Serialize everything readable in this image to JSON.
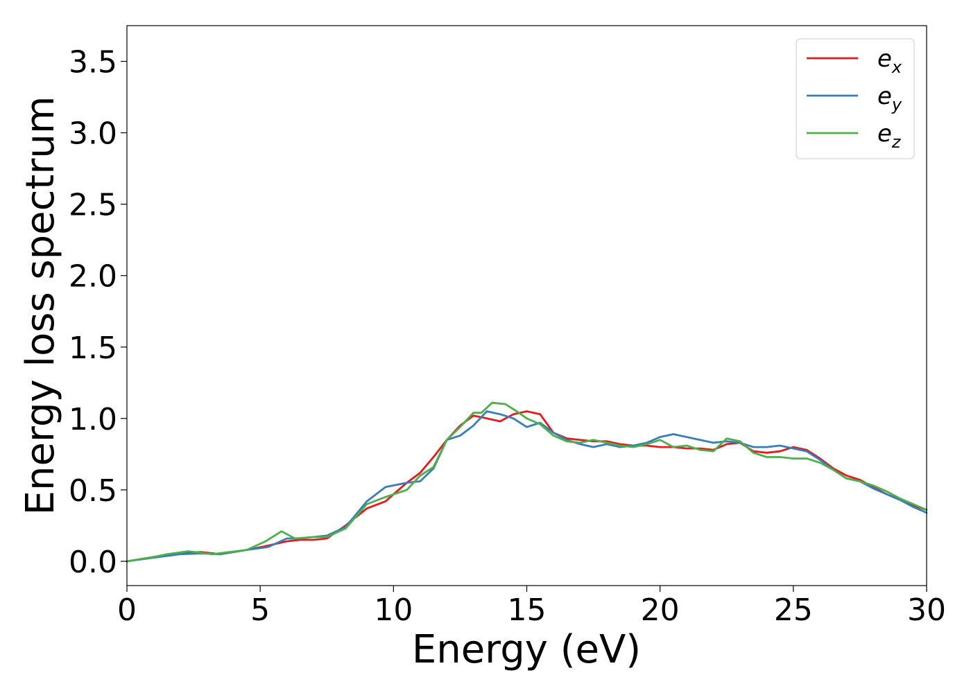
{
  "chart_data": {
    "type": "line",
    "title": "",
    "xlabel": "Energy (eV)",
    "ylabel": "Energy loss spectrum",
    "xlim": [
      0,
      30
    ],
    "ylim": [
      -0.17,
      3.75
    ],
    "xticks": [
      0,
      5,
      10,
      15,
      20,
      25,
      30
    ],
    "xtick_labels": [
      "0",
      "5",
      "10",
      "15",
      "20",
      "25",
      "30"
    ],
    "yticks": [
      0.0,
      0.5,
      1.0,
      1.5,
      2.0,
      2.5,
      3.0,
      3.5
    ],
    "ytick_labels": [
      "0.0",
      "0.5",
      "1.0",
      "1.5",
      "2.0",
      "2.5",
      "3.0",
      "3.5"
    ],
    "grid": false,
    "legend_position": "top-right",
    "series": [
      {
        "name_base": "e",
        "name_sub": "x",
        "color": "#e41a1c",
        "x": [
          0,
          1,
          2,
          2.8,
          3.5,
          4.5,
          5.3,
          6,
          6.5,
          7,
          7.5,
          8.2,
          9,
          9.7,
          10.5,
          11,
          11.5,
          12,
          12.5,
          13,
          13.5,
          14,
          14.5,
          15,
          15.5,
          16,
          16.5,
          17,
          17.5,
          18,
          18.5,
          19,
          19.5,
          20,
          20.5,
          21,
          21.5,
          22,
          22.5,
          23,
          23.5,
          24,
          24.5,
          25,
          25.5,
          26,
          26.5,
          27,
          27.5,
          28,
          28.5,
          29,
          29.5,
          30
        ],
        "y": [
          0.0,
          0.03,
          0.06,
          0.065,
          0.05,
          0.08,
          0.11,
          0.14,
          0.15,
          0.15,
          0.16,
          0.25,
          0.37,
          0.42,
          0.55,
          0.62,
          0.73,
          0.85,
          0.95,
          1.02,
          1.0,
          0.98,
          1.03,
          1.05,
          1.03,
          0.9,
          0.86,
          0.85,
          0.84,
          0.84,
          0.82,
          0.81,
          0.81,
          0.8,
          0.8,
          0.79,
          0.79,
          0.78,
          0.82,
          0.83,
          0.77,
          0.76,
          0.77,
          0.8,
          0.78,
          0.72,
          0.65,
          0.6,
          0.57,
          0.52,
          0.47,
          0.43,
          0.39,
          0.36
        ]
      },
      {
        "name_base": "e",
        "name_sub": "y",
        "color": "#377eb8",
        "x": [
          0,
          1,
          2,
          2.8,
          3.5,
          4.5,
          5.3,
          6,
          6.5,
          7,
          7.5,
          8.2,
          9,
          9.7,
          10.5,
          11,
          11.5,
          12,
          12.5,
          13,
          13.5,
          14,
          14.5,
          15,
          15.5,
          16,
          16.5,
          17,
          17.5,
          18,
          18.5,
          19,
          19.5,
          20,
          20.5,
          21,
          21.5,
          22,
          22.5,
          23,
          23.5,
          24,
          24.5,
          25,
          25.5,
          26,
          26.5,
          27,
          27.5,
          28,
          28.5,
          29,
          29.5,
          30
        ],
        "y": [
          0.0,
          0.025,
          0.05,
          0.055,
          0.05,
          0.08,
          0.1,
          0.16,
          0.16,
          0.17,
          0.18,
          0.24,
          0.42,
          0.52,
          0.55,
          0.56,
          0.65,
          0.85,
          0.88,
          0.95,
          1.05,
          1.03,
          1.0,
          0.94,
          0.97,
          0.9,
          0.85,
          0.82,
          0.8,
          0.82,
          0.8,
          0.81,
          0.83,
          0.87,
          0.89,
          0.87,
          0.85,
          0.83,
          0.84,
          0.83,
          0.8,
          0.8,
          0.81,
          0.79,
          0.77,
          0.71,
          0.64,
          0.58,
          0.56,
          0.51,
          0.47,
          0.43,
          0.38,
          0.34
        ]
      },
      {
        "name_base": "e",
        "name_sub": "z",
        "color": "#4daf4a",
        "x": [
          0,
          1,
          1.5,
          2.3,
          3.2,
          4.5,
          5.2,
          5.8,
          6.3,
          7,
          7.5,
          8.2,
          9,
          9.7,
          10.5,
          11,
          11.5,
          12,
          12.5,
          13,
          13.3,
          13.7,
          14.2,
          14.7,
          15,
          15.5,
          16,
          16.5,
          17,
          17.5,
          18,
          18.5,
          19,
          19.5,
          20,
          20.5,
          21,
          21.5,
          22,
          22.5,
          23,
          23.5,
          24,
          24.5,
          25,
          25.5,
          26,
          26.5,
          27,
          27.5,
          28,
          28.5,
          29,
          29.5,
          30
        ],
        "y": [
          0.0,
          0.03,
          0.05,
          0.07,
          0.05,
          0.08,
          0.14,
          0.21,
          0.16,
          0.17,
          0.17,
          0.23,
          0.4,
          0.45,
          0.5,
          0.6,
          0.66,
          0.85,
          0.94,
          1.04,
          1.04,
          1.11,
          1.1,
          1.04,
          1.0,
          0.96,
          0.88,
          0.84,
          0.83,
          0.85,
          0.83,
          0.81,
          0.8,
          0.82,
          0.85,
          0.8,
          0.81,
          0.78,
          0.77,
          0.86,
          0.84,
          0.76,
          0.73,
          0.73,
          0.72,
          0.72,
          0.69,
          0.64,
          0.58,
          0.56,
          0.53,
          0.49,
          0.44,
          0.4,
          0.36
        ]
      }
    ]
  }
}
